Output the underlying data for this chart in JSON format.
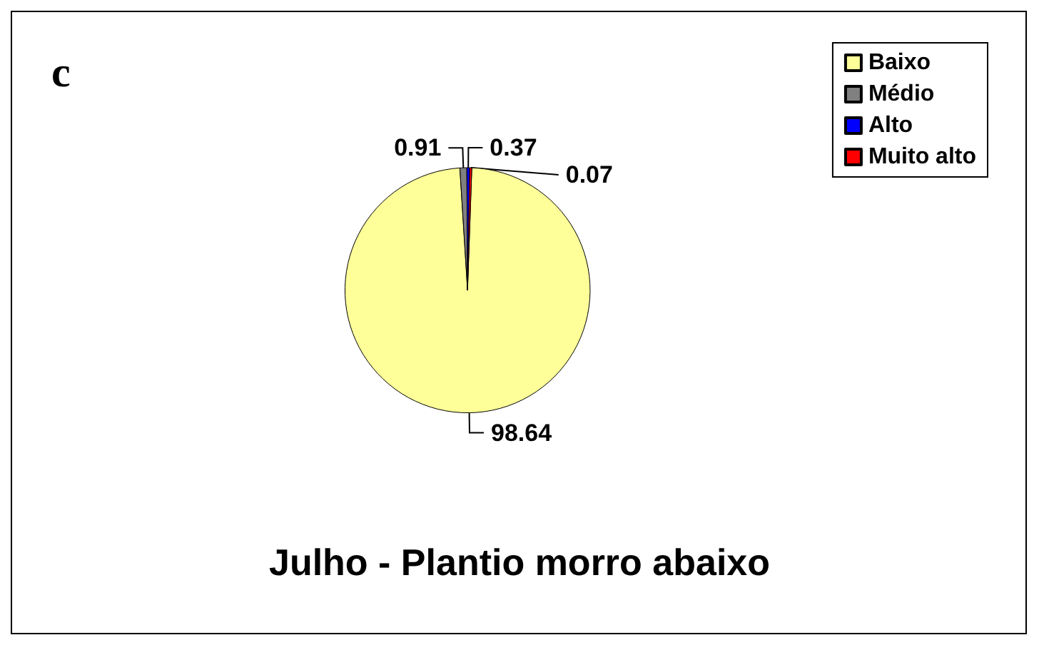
{
  "chart_data": {
    "type": "pie",
    "title": "Julho - Plantio morro abaixo",
    "annotations": [
      "c"
    ],
    "categories": [
      "Baixo",
      "Médio",
      "Alto",
      "Muito alto"
    ],
    "values": [
      98.64,
      0.91,
      0.37,
      0.07
    ],
    "colors": [
      "#ffff99",
      "#808080",
      "#0000ff",
      "#ff0000"
    ],
    "data_labels": true,
    "legend": "top right"
  }
}
